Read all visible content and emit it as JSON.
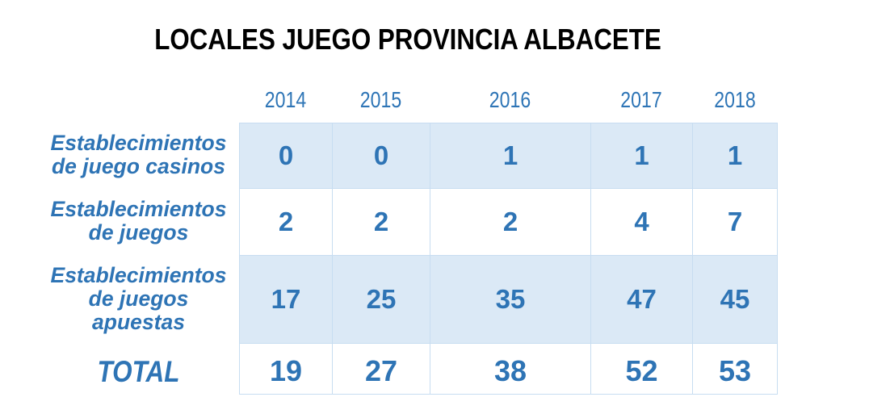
{
  "title": "LOCALES JUEGO PROVINCIA ALBACETE",
  "colors": {
    "title_text": "#000000",
    "accent_blue_text": "#2e74b5",
    "year_header_text": "#2e75b6",
    "band_fill": "#dbe9f6",
    "grid_border": "#c7ddf1",
    "background": "#ffffff"
  },
  "chart_data": {
    "type": "table",
    "title": "LOCALES JUEGO PROVINCIA ALBACETE",
    "columns": [
      "2014",
      "2015",
      "2016",
      "2017",
      "2018"
    ],
    "rows": [
      {
        "label": "Establecimientos de juego casinos",
        "values": [
          0,
          0,
          1,
          1,
          1
        ]
      },
      {
        "label": "Establecimientos de juegos",
        "values": [
          2,
          2,
          2,
          4,
          7
        ]
      },
      {
        "label": "Establecimientos de juegos apuestas",
        "values": [
          17,
          25,
          35,
          47,
          45
        ]
      },
      {
        "label": "TOTAL",
        "values": [
          19,
          27,
          38,
          52,
          53
        ]
      }
    ],
    "layout": {
      "banded_rows": true,
      "band_color": "#dbe9f6",
      "legend": "none",
      "grid": "on"
    }
  },
  "table": {
    "col_headers": [
      "2014",
      "2015",
      "2016",
      "2017",
      "2018"
    ],
    "rows": [
      {
        "label_lines": [
          "Establecimientos",
          "de juego casinos"
        ],
        "values": [
          "0",
          "0",
          "1",
          "1",
          "1"
        ]
      },
      {
        "label_lines": [
          "Establecimientos",
          "de juegos"
        ],
        "values": [
          "2",
          "2",
          "2",
          "4",
          "7"
        ]
      },
      {
        "label_lines": [
          "Establecimientos",
          "de juegos",
          "apuestas"
        ],
        "values": [
          "17",
          "25",
          "35",
          "47",
          "45"
        ]
      },
      {
        "label_lines": [
          "TOTAL"
        ],
        "values": [
          "19",
          "27",
          "38",
          "52",
          "53"
        ]
      }
    ]
  }
}
